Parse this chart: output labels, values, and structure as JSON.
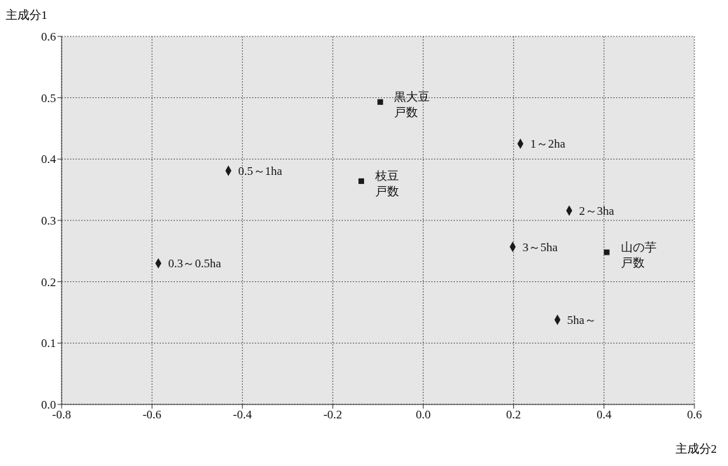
{
  "chart_data": {
    "type": "scatter",
    "xlabel": "主成分2",
    "ylabel": "主成分1",
    "xlim": [
      -0.8,
      0.6
    ],
    "ylim": [
      0,
      0.6
    ],
    "xticks": [
      {
        "value": -0.8,
        "label": "-0.8"
      },
      {
        "value": -0.6,
        "label": "-0.6"
      },
      {
        "value": -0.4,
        "label": "-0.4"
      },
      {
        "value": -0.2,
        "label": "-0.2"
      },
      {
        "value": 0,
        "label": "0.0"
      },
      {
        "value": 0.2,
        "label": "0.2"
      },
      {
        "value": 0.4,
        "label": "0.4"
      },
      {
        "value": 0.6,
        "label": "0.6"
      }
    ],
    "yticks": [
      {
        "value": 0,
        "label": "0.0"
      },
      {
        "value": 0.1,
        "label": "0.1"
      },
      {
        "value": 0.2,
        "label": "0.2"
      },
      {
        "value": 0.3,
        "label": "0.3"
      },
      {
        "value": 0.4,
        "label": "0.4"
      },
      {
        "value": 0.5,
        "label": "0.5"
      },
      {
        "value": 0.6,
        "label": "0.6"
      }
    ],
    "grid": true,
    "legend": false,
    "series": [
      {
        "color": "#1a1a1a",
        "marker": "diamond",
        "x": [
          -0.586,
          -0.431,
          0.215,
          0.323,
          0.198,
          0.297
        ],
        "values": [
          0.23,
          0.381,
          0.425,
          0.316,
          0.257,
          0.138
        ]
      },
      {
        "color": "#1a1a1a",
        "marker": "square",
        "x": [
          -0.095,
          -0.137,
          0.406
        ],
        "values": [
          0.493,
          0.364,
          0.248
        ]
      }
    ],
    "annotations": [
      {
        "text": "0.3～0.5ha",
        "x": -0.586,
        "y": 0.23
      },
      {
        "text": "0.5～1ha",
        "x": -0.431,
        "y": 0.381
      },
      {
        "text": "1～2ha",
        "x": 0.215,
        "y": 0.425
      },
      {
        "text": "2～3ha",
        "x": 0.323,
        "y": 0.316
      },
      {
        "text": "3～5ha",
        "x": 0.198,
        "y": 0.257
      },
      {
        "text": "5ha～",
        "x": 0.297,
        "y": 0.138
      },
      {
        "text": "黒大豆戸数",
        "x": -0.095,
        "y": 0.493
      },
      {
        "text": "枝豆戸数",
        "x": -0.137,
        "y": 0.364
      },
      {
        "text": "山の芋戸数",
        "x": 0.406,
        "y": 0.248
      }
    ]
  }
}
